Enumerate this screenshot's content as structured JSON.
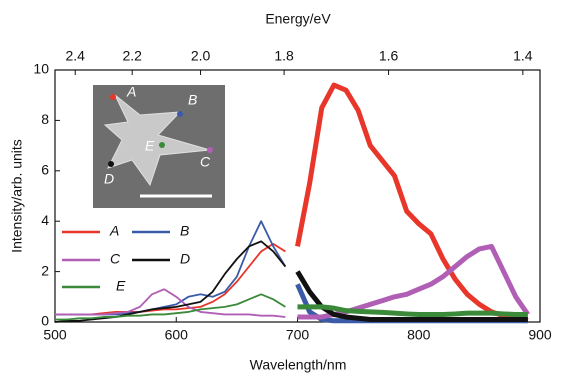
{
  "chart_data": {
    "type": "line",
    "xlabel": "Wavelength/nm",
    "ylabel": "Intensity/arb. units",
    "x2label": "Energy/eV",
    "x": [
      500,
      510,
      520,
      530,
      540,
      550,
      560,
      570,
      580,
      590,
      600,
      610,
      620,
      630,
      640,
      650,
      660,
      670,
      680,
      690,
      700,
      710,
      720,
      730,
      740,
      750,
      760,
      770,
      780,
      790,
      800,
      810,
      820,
      830,
      840,
      850,
      860,
      870,
      880,
      890
    ],
    "series": [
      {
        "name": "A",
        "color": "#e8362b",
        "values": [
          0.3,
          0.3,
          0.3,
          0.3,
          0.35,
          0.4,
          0.4,
          0.4,
          0.45,
          0.5,
          0.5,
          0.55,
          0.6,
          0.8,
          1.1,
          1.6,
          2.2,
          2.8,
          3.1,
          2.8,
          3.0,
          5.5,
          8.5,
          9.4,
          9.2,
          8.4,
          7.0,
          6.4,
          5.8,
          4.4,
          3.9,
          3.5,
          2.5,
          1.7,
          1.1,
          0.7,
          0.4,
          0.25,
          0.15,
          0.05
        ]
      },
      {
        "name": "B",
        "color": "#3b5ba8",
        "values": [
          0.3,
          0.3,
          0.3,
          0.3,
          0.3,
          0.3,
          0.35,
          0.4,
          0.5,
          0.6,
          0.7,
          1.0,
          1.1,
          1.0,
          1.2,
          1.8,
          3.0,
          4.0,
          3.0,
          2.2,
          1.5,
          0.4,
          0.1,
          0.05,
          0.05,
          0.05,
          0.05,
          0.05,
          0.05,
          0.05,
          0.05,
          0.05,
          0.05,
          0.05,
          0.05,
          0.05,
          0.05,
          0.05,
          0.05,
          0.05
        ]
      },
      {
        "name": "C",
        "color": "#b05fb5",
        "values": [
          0.3,
          0.3,
          0.3,
          0.3,
          0.3,
          0.35,
          0.4,
          0.6,
          1.1,
          1.3,
          1.0,
          0.6,
          0.4,
          0.35,
          0.3,
          0.3,
          0.3,
          0.25,
          0.25,
          0.2,
          0.2,
          0.2,
          0.2,
          0.3,
          0.4,
          0.55,
          0.7,
          0.85,
          1.0,
          1.1,
          1.3,
          1.5,
          1.8,
          2.2,
          2.6,
          2.9,
          3.0,
          2.0,
          1.0,
          0.3
        ]
      },
      {
        "name": "D",
        "color": "#111111",
        "values": [
          0.0,
          0.05,
          0.05,
          0.1,
          0.15,
          0.2,
          0.3,
          0.4,
          0.5,
          0.55,
          0.6,
          0.7,
          0.8,
          1.2,
          1.9,
          2.5,
          3.0,
          3.2,
          2.8,
          2.2,
          2.0,
          1.2,
          0.6,
          0.3,
          0.2,
          0.15,
          0.1,
          0.1,
          0.1,
          0.1,
          0.1,
          0.1,
          0.1,
          0.1,
          0.1,
          0.1,
          0.1,
          0.1,
          0.1,
          0.1
        ]
      },
      {
        "name": "E",
        "color": "#3a8a3a",
        "values": [
          0.1,
          0.1,
          0.15,
          0.15,
          0.2,
          0.2,
          0.25,
          0.25,
          0.3,
          0.3,
          0.35,
          0.4,
          0.5,
          0.55,
          0.6,
          0.7,
          0.9,
          1.1,
          0.9,
          0.6,
          0.6,
          0.6,
          0.6,
          0.55,
          0.45,
          0.42,
          0.4,
          0.38,
          0.35,
          0.32,
          0.3,
          0.3,
          0.3,
          0.32,
          0.35,
          0.35,
          0.35,
          0.32,
          0.3,
          0.3
        ]
      }
    ],
    "thick_from": 700,
    "xlim": [
      500,
      900
    ],
    "xticks": [
      500,
      600,
      700,
      800,
      900
    ],
    "ylim": [
      0,
      10
    ],
    "yticks": [
      0,
      2,
      4,
      6,
      8,
      10
    ],
    "x2lim": [
      2.48,
      1.378
    ],
    "x2scale": "reciprocal",
    "x2ticks": [
      2.4,
      2.2,
      2.0,
      1.8,
      1.6,
      1.4
    ]
  }
}
